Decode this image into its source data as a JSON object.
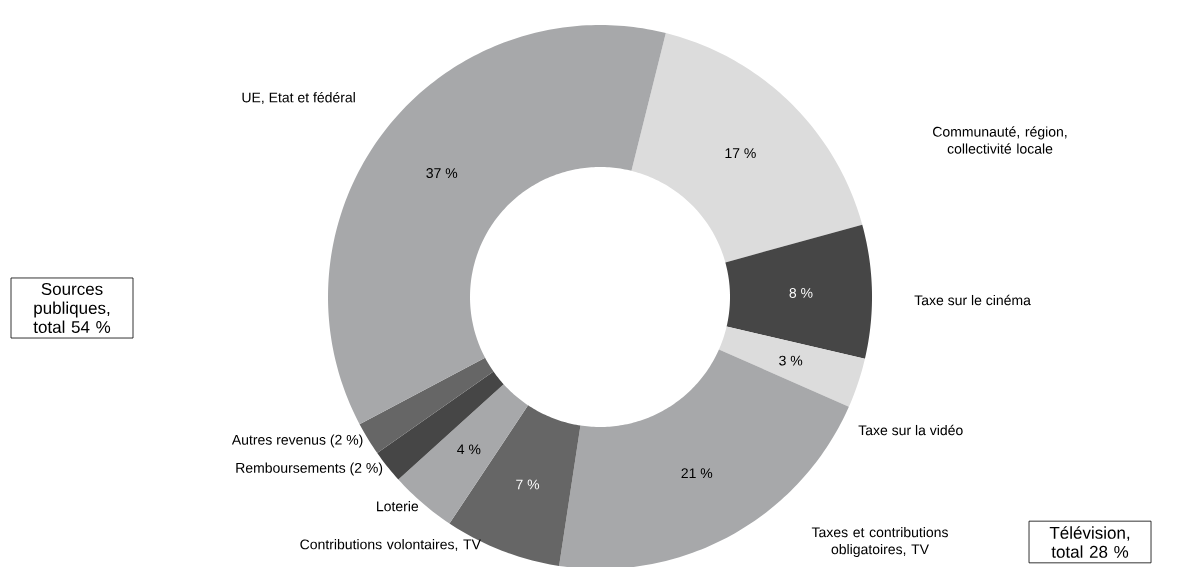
{
  "chart_data": {
    "type": "donut",
    "categories": [
      "Communauté, région, collectivité locale",
      "Taxe sur le cinéma",
      "Taxe sur la vidéo",
      "Taxes et contributions obligatoires, TV",
      "Contributions volontaires, TV",
      "Loterie",
      "Remboursements (2 %)",
      "Autres revenus (2 %)",
      "UE, Etat et fédéral"
    ],
    "values": [
      17,
      8,
      3,
      21,
      7,
      4,
      2,
      2,
      37
    ],
    "colors": [
      "#dcdcdc",
      "#464646",
      "#dcdcdc",
      "#a7a8aa",
      "#666666",
      "#a7a8aa",
      "#464646",
      "#666666",
      "#a7a8aa"
    ],
    "value_labels": [
      "17 %",
      "8 %",
      "3 %",
      "21 %",
      "7 %",
      "4 %",
      null,
      null,
      "37 %"
    ],
    "annotations": [
      "Sources publiques, total 54 %",
      "Télévision, total 28 %"
    ]
  }
}
